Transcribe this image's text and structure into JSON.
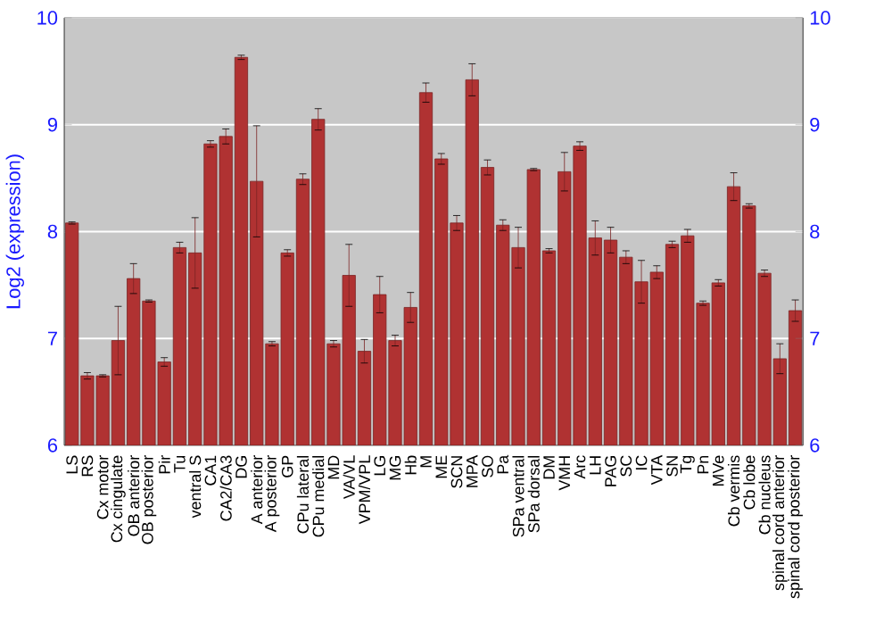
{
  "chart_data": {
    "type": "bar",
    "ylabel": "Log2 (expression)",
    "categories": [
      "LS",
      "RS",
      "Cx motor",
      "Cx cingulate",
      "OB anterior",
      "OB posterior",
      "Pir",
      "Tu",
      "ventral S",
      "CA1",
      "CA2/CA3",
      "DG",
      "A anterior",
      "A posterior",
      "GP",
      "CPu lateral",
      "CPu medial",
      "MD",
      "VA/VL",
      "VPM/VPL",
      "LG",
      "MG",
      "Hb",
      "M",
      "ME",
      "SCN",
      "MPA",
      "SO",
      "Pa",
      "SPa ventral",
      "SPa dorsal",
      "DM",
      "VMH",
      "Arc",
      "LH",
      "PAG",
      "SC",
      "IC",
      "VTA",
      "SN",
      "Tg",
      "Pn",
      "MVe",
      "Cb vermis",
      "Cb lobe",
      "Cb nucleus",
      "spinal cord anterior",
      "spinal cord posterior"
    ],
    "values": [
      8.08,
      6.65,
      6.65,
      6.98,
      7.56,
      7.35,
      6.78,
      7.85,
      7.8,
      8.82,
      8.89,
      9.63,
      8.47,
      6.95,
      7.8,
      8.49,
      9.05,
      6.95,
      7.59,
      6.88,
      7.41,
      6.98,
      7.29,
      9.3,
      8.68,
      8.08,
      9.42,
      8.6,
      8.06,
      7.85,
      8.58,
      7.82,
      8.56,
      8.8,
      7.94,
      7.92,
      7.76,
      7.53,
      7.62,
      7.88,
      7.96,
      7.33,
      7.52,
      8.42,
      8.24,
      7.61,
      6.81,
      7.26
    ],
    "errors": [
      0.01,
      0.03,
      0.01,
      0.32,
      0.14,
      0.01,
      0.04,
      0.05,
      0.33,
      0.03,
      0.07,
      0.02,
      0.52,
      0.02,
      0.03,
      0.05,
      0.1,
      0.03,
      0.29,
      0.11,
      0.17,
      0.05,
      0.14,
      0.09,
      0.05,
      0.07,
      0.15,
      0.07,
      0.05,
      0.19,
      0.01,
      0.02,
      0.18,
      0.04,
      0.16,
      0.12,
      0.06,
      0.2,
      0.06,
      0.03,
      0.06,
      0.02,
      0.03,
      0.13,
      0.02,
      0.03,
      0.14,
      0.1
    ],
    "color": "#b03232",
    "ylim": [
      6,
      10
    ],
    "yticks": [
      6,
      7,
      8,
      9,
      10
    ],
    "y2lim": [
      6,
      10
    ],
    "y2ticks": [
      6,
      7,
      8,
      9,
      10
    ],
    "grid": "y"
  }
}
